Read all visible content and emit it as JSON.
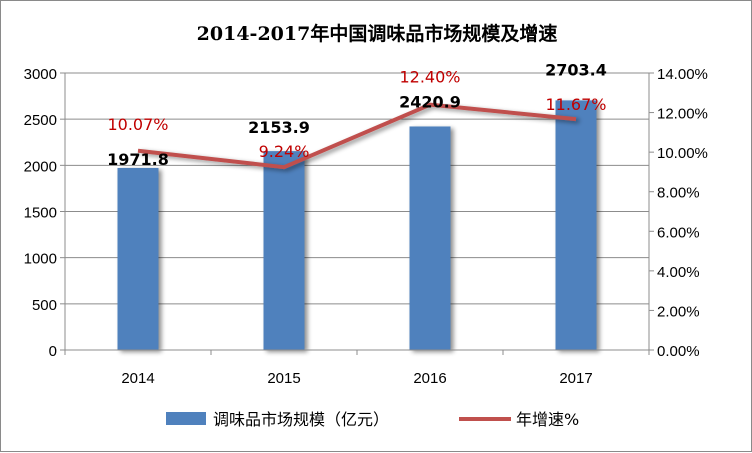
{
  "chart_data": {
    "type": "bar+line",
    "title": "2014-2017年中国调味品市场规模及增速",
    "categories": [
      "2014",
      "2015",
      "2016",
      "2017"
    ],
    "series": [
      {
        "name": "调味品市场规模（亿元）",
        "type": "bar",
        "axis": "left",
        "values": [
          1971.8,
          2153.9,
          2420.9,
          2703.4
        ],
        "labels": [
          "1971.8",
          "2153.9",
          "2420.9",
          "2703.4"
        ],
        "color": "#4f81bd"
      },
      {
        "name": "年增速%",
        "type": "line",
        "axis": "right",
        "values": [
          10.07,
          9.24,
          12.4,
          11.67
        ],
        "labels": [
          "10.07%",
          "9.24%",
          "12.40%",
          "11.67%"
        ],
        "color": "#c0504d"
      }
    ],
    "left_axis": {
      "ylim": [
        0,
        3000
      ],
      "ticks": [
        "0",
        "500",
        "1000",
        "1500",
        "2000",
        "2500",
        "3000"
      ]
    },
    "right_axis": {
      "ylim": [
        0,
        14
      ],
      "ticks": [
        "0.00%",
        "2.00%",
        "4.00%",
        "6.00%",
        "8.00%",
        "10.00%",
        "12.00%",
        "14.00%"
      ]
    },
    "grid": true,
    "legend_position": "bottom"
  }
}
